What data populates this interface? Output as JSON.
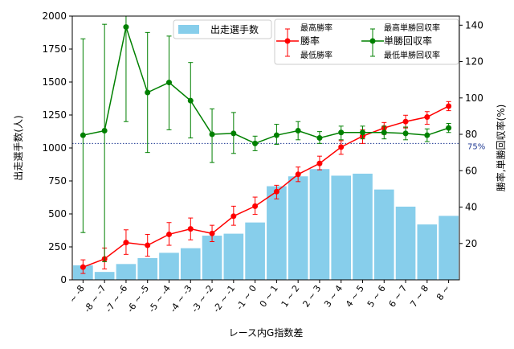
{
  "chart_data": {
    "type": "bar+line",
    "xlabel": "レース内G指数差",
    "ylabel_left": "出走選手数(人)",
    "ylabel_right": "勝率,単勝回収率(%)",
    "ylim_left": [
      0,
      2000
    ],
    "yticks_left": [
      0,
      250,
      500,
      750,
      1000,
      1250,
      1500,
      1750,
      2000
    ],
    "ylim_right": [
      0,
      145
    ],
    "yticks_right": [
      20,
      40,
      60,
      80,
      100,
      120,
      140
    ],
    "categories": [
      "~ -8",
      "-8 ~ -7",
      "-7 ~ -6",
      "-6 ~ -5",
      "-5 ~ -4",
      "-4 ~ -3",
      "-3 ~ -2",
      "-2 ~ -1",
      "-1 ~ 0",
      "0 ~ 1",
      "1 ~ 2",
      "2 ~ 3",
      "3 ~ 4",
      "4 ~ 5",
      "5 ~ 6",
      "6 ~ 7",
      "7 ~ 8",
      "8 ~"
    ],
    "bars": {
      "name": "出走選手数",
      "color": "#87ceeb",
      "values": [
        110,
        60,
        120,
        165,
        205,
        240,
        335,
        350,
        435,
        710,
        785,
        840,
        790,
        805,
        685,
        555,
        420,
        485
      ]
    },
    "win_rate": {
      "name": "勝率",
      "upper_name": "最高勝率",
      "lower_name": "最低勝率",
      "color": "#ff0000",
      "values": [
        7,
        11.5,
        20.5,
        19,
        25,
        28,
        25.5,
        35,
        40.5,
        48.5,
        58,
        64,
        73,
        79,
        83.5,
        87,
        89.5,
        95.5
      ],
      "lower": [
        3.5,
        6,
        14,
        13,
        19,
        22,
        21,
        30,
        36,
        44.5,
        54,
        60.5,
        69,
        75,
        80,
        83.5,
        85.5,
        93
      ],
      "upper": [
        11,
        17.5,
        27.5,
        25,
        31.5,
        34,
        30,
        40.5,
        45.5,
        52,
        62,
        68,
        76.5,
        82.5,
        86.5,
        90.5,
        92.5,
        98
      ]
    },
    "return_rate": {
      "name": "単勝回収率",
      "upper_name": "最高単勝回収率",
      "lower_name": "最低単勝回収率",
      "color": "#008000",
      "values": [
        79.5,
        82,
        139,
        103,
        108.5,
        98.5,
        80,
        80.5,
        75,
        79.5,
        82,
        78,
        81,
        81,
        81,
        80.5,
        79.5,
        83.5
      ],
      "lower": [
        26,
        10,
        87,
        70,
        82.5,
        78,
        64.5,
        69.5,
        71,
        74.5,
        77,
        75,
        77,
        77.5,
        77.5,
        77,
        76,
        81
      ],
      "upper": [
        132.5,
        140.5,
        145,
        136,
        134,
        119.5,
        94,
        92,
        79,
        85.5,
        87,
        81.5,
        84.5,
        84.5,
        84.5,
        84,
        83,
        86
      ]
    },
    "reference_line": {
      "value": 75,
      "label": "75%",
      "color": "#1f3a93",
      "style": "dotted"
    },
    "legend_left": {
      "label": "出走選手数"
    },
    "legend_right": {
      "col1": [
        "最高勝率",
        "勝率",
        "最低勝率"
      ],
      "col2": [
        "最高単勝回収率",
        "単勝回収率",
        "最低単勝回収率"
      ]
    },
    "grid": false
  }
}
